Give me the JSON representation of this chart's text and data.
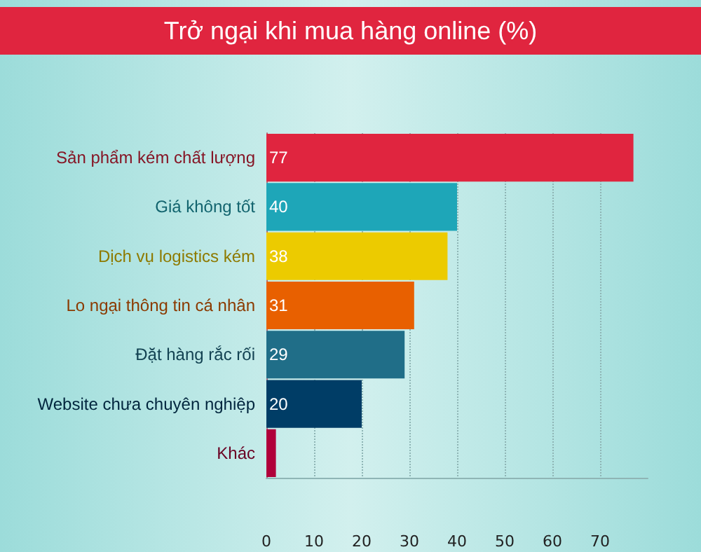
{
  "chart_data": {
    "type": "bar",
    "orientation": "horizontal",
    "title": "Trở ngại khi mua hàng online (%)",
    "categories": [
      "Sản phẩm kém chất lượng",
      "Giá không tốt",
      "Dịch vụ logistics kém",
      "Lo ngại thông tin cá nhân",
      "Đặt hàng rắc rối",
      "Website chưa chuyên nghiệp",
      "Khác"
    ],
    "values": [
      77,
      40,
      38,
      31,
      29,
      20,
      2
    ],
    "value_labels": [
      "77",
      "40",
      "38",
      "31",
      "29",
      "20",
      null
    ],
    "colors": [
      "#e0253f",
      "#1ea6b8",
      "#eccb00",
      "#e86000",
      "#206e88",
      "#003d66",
      "#b0003a"
    ],
    "xlim": [
      0,
      80
    ],
    "xticks": [
      0,
      10,
      20,
      30,
      40,
      50,
      60,
      70
    ],
    "grid": "x"
  }
}
